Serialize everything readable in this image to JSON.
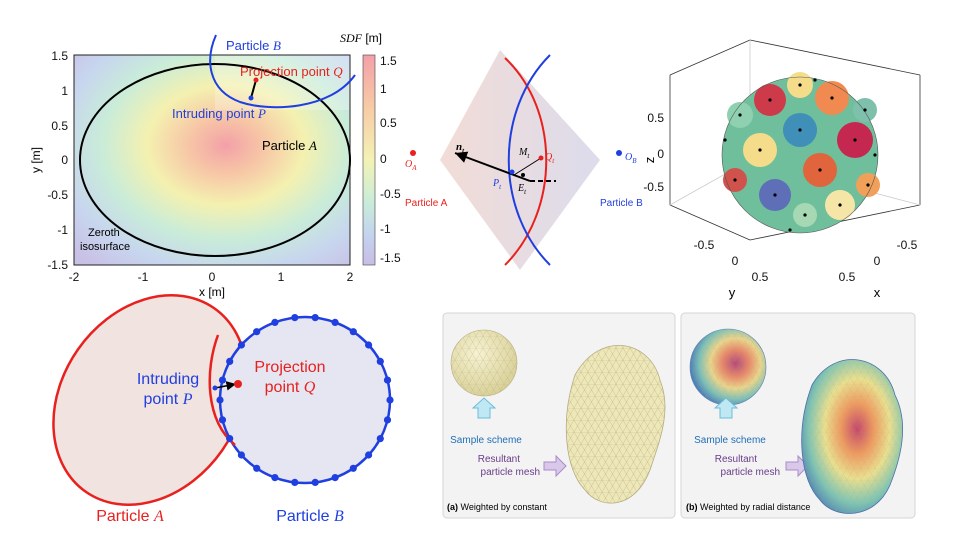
{
  "colors": {
    "red": "#e8211e",
    "blue": "#1f3fe0",
    "black": "#000000",
    "panel_bg": "#f3f3f3",
    "mesh_fill": "#eee7b8"
  },
  "sdf_plot": {
    "colorbar_title_var": "SDF",
    "colorbar_title_unit": "[m]",
    "colorbar_ticks": [
      "1.5",
      "1",
      "0.5",
      "0",
      "-0.5",
      "-1",
      "-1.5"
    ],
    "x_ticks": [
      "-2",
      "-1",
      "0",
      "1",
      "2"
    ],
    "y_ticks": [
      "1.5",
      "1",
      "0.5",
      "0",
      "-0.5",
      "-1",
      "-1.5"
    ],
    "xlabel": "x [m]",
    "ylabel": "y [m]",
    "particle_b_label": "Particle",
    "particle_b_var": "B",
    "projection_label": "Projection point",
    "projection_var": "Q",
    "intruding_label": "Intruding point",
    "intruding_var": "P",
    "particle_a_label": "Particle",
    "particle_a_var": "A",
    "zeroth_line1": "Zeroth",
    "zeroth_line2": "isosurface"
  },
  "contact_diagram": {
    "n_label": "n",
    "n_sub": "t",
    "m_label": "M",
    "m_sub": "t",
    "q_label": "Q",
    "q_sub": "t",
    "p_label": "P",
    "p_sub": "t",
    "e_label": "E",
    "e_sub": "t",
    "oa_label": "O",
    "oa_sub": "A",
    "ob_label": "O",
    "ob_sub": "B",
    "particle_a": "Particle A",
    "particle_b": "Particle B"
  },
  "sphere_plot": {
    "z_ticks": [
      "0.5",
      "0",
      "-0.5"
    ],
    "y_ticks": [
      "-0.5",
      "0",
      "0.5"
    ],
    "x_ticks": [
      "-0.5",
      "0",
      "0.5"
    ],
    "zlabel": "z",
    "ylabel": "y",
    "xlabel": "x"
  },
  "overlap_diagram": {
    "intruding_line1": "Intruding",
    "intruding_line2": "point",
    "intruding_var": "P",
    "projection_line1": "Projection",
    "projection_line2": "point",
    "projection_var": "Q",
    "particle_a": "Particle",
    "particle_a_var": "A",
    "particle_b": "Particle",
    "particle_b_var": "B"
  },
  "mesh_panels": [
    {
      "tag": "(a)",
      "caption": "Weighted by constant",
      "sample_label": "Sample scheme",
      "result_line1": "Resultant",
      "result_line2": "particle mesh"
    },
    {
      "tag": "(b)",
      "caption": "Weighted by radial distance",
      "sample_label": "Sample scheme",
      "result_line1": "Resultant",
      "result_line2": "particle mesh"
    }
  ]
}
